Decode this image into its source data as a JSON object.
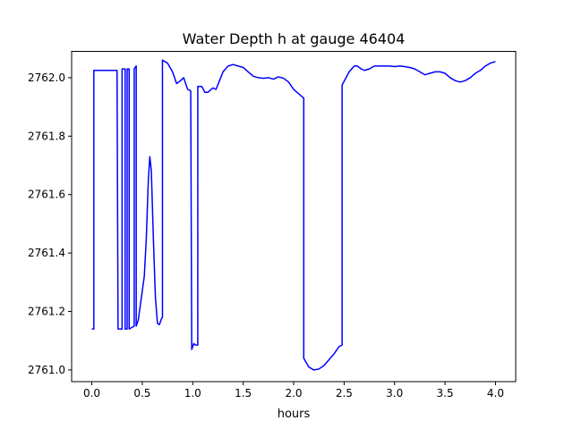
{
  "chart_data": {
    "type": "line",
    "title": "Water Depth h at gauge 46404",
    "xlabel": "hours",
    "ylabel": "",
    "xlim": [
      -0.2,
      4.2
    ],
    "ylim": [
      2760.96,
      2762.09
    ],
    "xticks": [
      0.0,
      0.5,
      1.0,
      1.5,
      2.0,
      2.5,
      3.0,
      3.5,
      4.0
    ],
    "xtick_labels": [
      "0.0",
      "0.5",
      "1.0",
      "1.5",
      "2.0",
      "2.5",
      "3.0",
      "3.5",
      "4.0"
    ],
    "yticks": [
      2761.0,
      2761.2,
      2761.4,
      2761.6,
      2761.8,
      2762.0
    ],
    "ytick_labels": [
      "2761.0",
      "2761.2",
      "2761.4",
      "2761.6",
      "2761.8",
      "2762.0"
    ],
    "grid": false,
    "series": [
      {
        "name": "",
        "color": "#0000ff",
        "points": [
          [
            0.0,
            2761.14
          ],
          [
            0.02,
            2761.14
          ],
          [
            0.02,
            2762.025
          ],
          [
            0.25,
            2762.025
          ],
          [
            0.26,
            2761.14
          ],
          [
            0.3,
            2761.14
          ],
          [
            0.3,
            2762.03
          ],
          [
            0.33,
            2762.03
          ],
          [
            0.33,
            2761.14
          ],
          [
            0.35,
            2761.14
          ],
          [
            0.35,
            2762.03
          ],
          [
            0.37,
            2762.03
          ],
          [
            0.37,
            2761.14
          ],
          [
            0.42,
            2761.15
          ],
          [
            0.42,
            2762.03
          ],
          [
            0.44,
            2762.04
          ],
          [
            0.44,
            2761.15
          ],
          [
            0.46,
            2761.17
          ],
          [
            0.48,
            2761.22
          ],
          [
            0.5,
            2761.27
          ],
          [
            0.52,
            2761.32
          ],
          [
            0.54,
            2761.45
          ],
          [
            0.56,
            2761.65
          ],
          [
            0.575,
            2761.73
          ],
          [
            0.59,
            2761.68
          ],
          [
            0.61,
            2761.45
          ],
          [
            0.63,
            2761.25
          ],
          [
            0.65,
            2761.16
          ],
          [
            0.67,
            2761.155
          ],
          [
            0.69,
            2761.175
          ],
          [
            0.7,
            2761.18
          ],
          [
            0.7,
            2762.06
          ],
          [
            0.75,
            2762.05
          ],
          [
            0.8,
            2762.02
          ],
          [
            0.84,
            2761.98
          ],
          [
            0.88,
            2761.99
          ],
          [
            0.91,
            2762.0
          ],
          [
            0.93,
            2761.98
          ],
          [
            0.95,
            2761.96
          ],
          [
            0.98,
            2761.955
          ],
          [
            0.99,
            2761.07
          ],
          [
            1.01,
            2761.09
          ],
          [
            1.03,
            2761.085
          ],
          [
            1.05,
            2761.085
          ],
          [
            1.05,
            2761.97
          ],
          [
            1.09,
            2761.97
          ],
          [
            1.12,
            2761.95
          ],
          [
            1.15,
            2761.95
          ],
          [
            1.2,
            2761.965
          ],
          [
            1.23,
            2761.96
          ],
          [
            1.26,
            2761.985
          ],
          [
            1.3,
            2762.02
          ],
          [
            1.35,
            2762.04
          ],
          [
            1.4,
            2762.045
          ],
          [
            1.45,
            2762.04
          ],
          [
            1.5,
            2762.035
          ],
          [
            1.55,
            2762.02
          ],
          [
            1.6,
            2762.005
          ],
          [
            1.65,
            2762.0
          ],
          [
            1.7,
            2761.998
          ],
          [
            1.75,
            2762.0
          ],
          [
            1.8,
            2761.995
          ],
          [
            1.85,
            2762.003
          ],
          [
            1.9,
            2761.998
          ],
          [
            1.95,
            2761.985
          ],
          [
            2.0,
            2761.96
          ],
          [
            2.05,
            2761.945
          ],
          [
            2.1,
            2761.93
          ],
          [
            2.1,
            2761.04
          ],
          [
            2.15,
            2761.01
          ],
          [
            2.2,
            2761.0
          ],
          [
            2.25,
            2761.003
          ],
          [
            2.3,
            2761.015
          ],
          [
            2.35,
            2761.035
          ],
          [
            2.4,
            2761.055
          ],
          [
            2.45,
            2761.08
          ],
          [
            2.48,
            2761.085
          ],
          [
            2.48,
            2761.975
          ],
          [
            2.55,
            2762.02
          ],
          [
            2.6,
            2762.04
          ],
          [
            2.63,
            2762.04
          ],
          [
            2.67,
            2762.03
          ],
          [
            2.7,
            2762.025
          ],
          [
            2.75,
            2762.03
          ],
          [
            2.8,
            2762.04
          ],
          [
            2.85,
            2762.04
          ],
          [
            2.9,
            2762.04
          ],
          [
            2.95,
            2762.04
          ],
          [
            3.0,
            2762.038
          ],
          [
            3.05,
            2762.04
          ],
          [
            3.1,
            2762.038
          ],
          [
            3.15,
            2762.035
          ],
          [
            3.2,
            2762.03
          ],
          [
            3.25,
            2762.02
          ],
          [
            3.3,
            2762.01
          ],
          [
            3.35,
            2762.015
          ],
          [
            3.4,
            2762.02
          ],
          [
            3.45,
            2762.02
          ],
          [
            3.5,
            2762.015
          ],
          [
            3.55,
            2762.0
          ],
          [
            3.6,
            2761.99
          ],
          [
            3.65,
            2761.985
          ],
          [
            3.7,
            2761.99
          ],
          [
            3.75,
            2762.0
          ],
          [
            3.8,
            2762.015
          ],
          [
            3.85,
            2762.025
          ],
          [
            3.9,
            2762.04
          ],
          [
            3.95,
            2762.05
          ],
          [
            4.0,
            2762.055
          ]
        ]
      }
    ]
  }
}
